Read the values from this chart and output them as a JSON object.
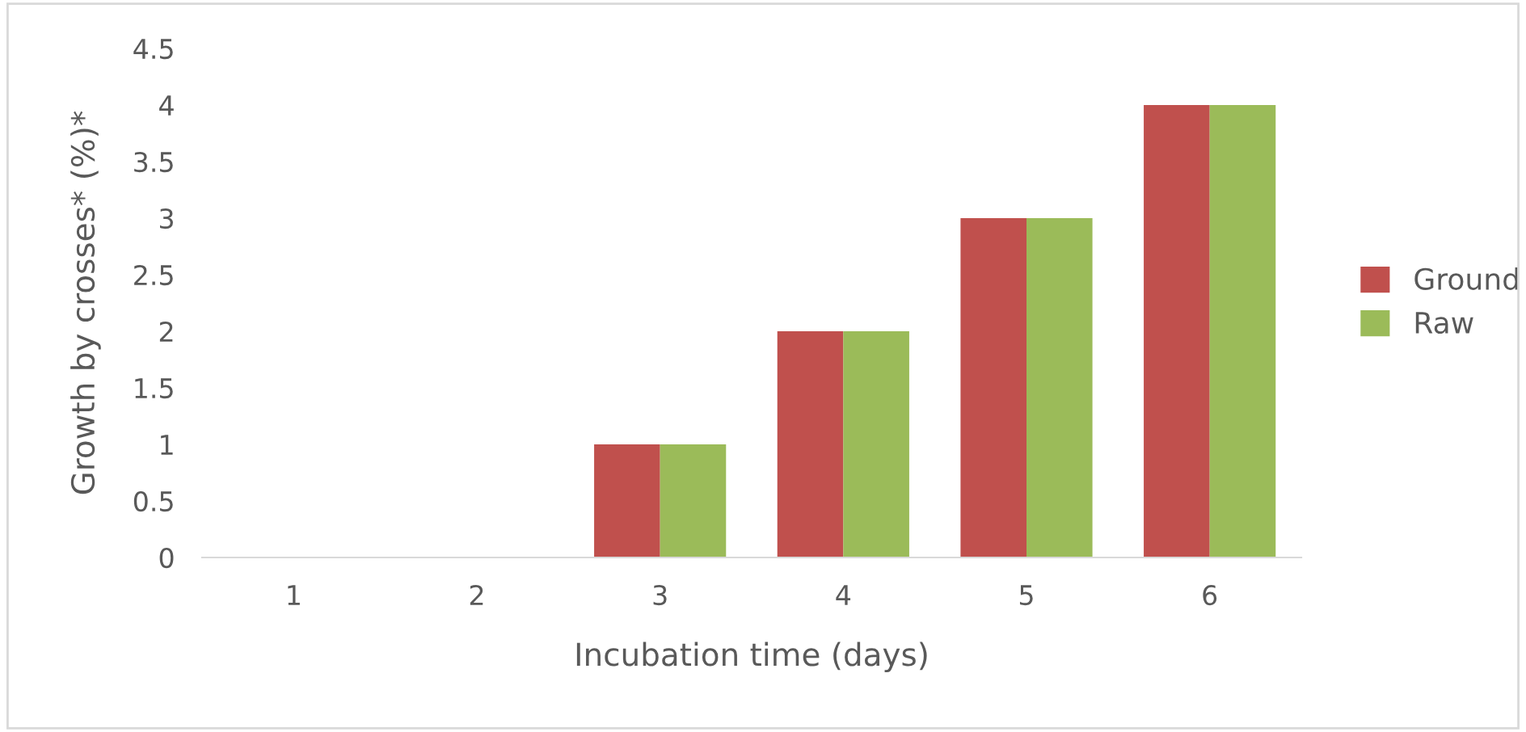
{
  "chart_data": {
    "type": "bar",
    "xlabel": "Incubation time (days)",
    "ylabel": "Growth by crosses* (%)*",
    "categories": [
      "1",
      "2",
      "3",
      "4",
      "5",
      "6"
    ],
    "series": [
      {
        "name": "Ground",
        "color": "#c0504d",
        "values": [
          0,
          0,
          1,
          2,
          3,
          4
        ]
      },
      {
        "name": "Raw",
        "color": "#9bbb59",
        "values": [
          0,
          0,
          1,
          2,
          3,
          4
        ]
      }
    ],
    "ylim": [
      0,
      4.5
    ],
    "yticks": [
      0,
      0.5,
      1,
      1.5,
      2,
      2.5,
      3,
      3.5,
      4,
      4.5
    ],
    "grid": false,
    "legend": "right"
  }
}
